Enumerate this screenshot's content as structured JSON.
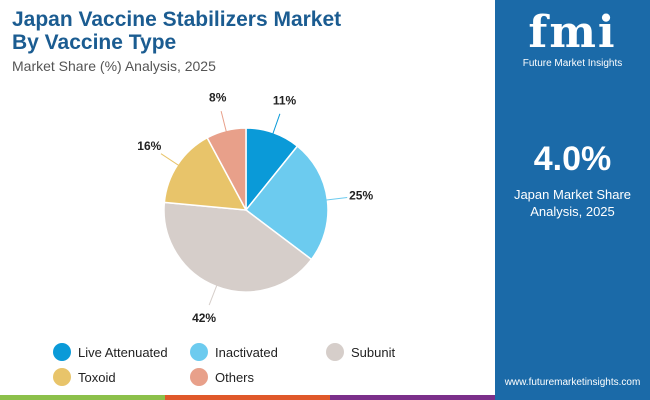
{
  "header": {
    "title_line1": "Japan Vaccine Stabilizers Market",
    "title_line2": "By Vaccine Type",
    "subtitle": "Market Share (%) Analysis, 2025"
  },
  "chart_data": {
    "type": "pie",
    "title": "Japan Vaccine Stabilizers Market By Vaccine Type",
    "categories": [
      "Live Attenuated",
      "Inactivated",
      "Subunit",
      "Toxoid",
      "Others"
    ],
    "values": [
      11,
      25,
      42,
      16,
      8
    ],
    "labels": [
      "11%",
      "25%",
      "42%",
      "16%",
      "8%"
    ],
    "colors": [
      "#0a9ad8",
      "#6ccbef",
      "#d6ceca",
      "#e8c46a",
      "#e8a08a"
    ],
    "legend_placement": "bottom"
  },
  "panel": {
    "logo_text": "fmi",
    "logo_sub": "Future Market Insights",
    "value": "4.0%",
    "label_line1": "Japan Market Share",
    "label_line2": "Analysis, 2025",
    "url": "www.futuremarketinsights.com"
  },
  "colors": {
    "panel": "#1b6aa8",
    "bar": [
      "#8cc04a",
      "#e0582a",
      "#7b2f8a"
    ]
  }
}
